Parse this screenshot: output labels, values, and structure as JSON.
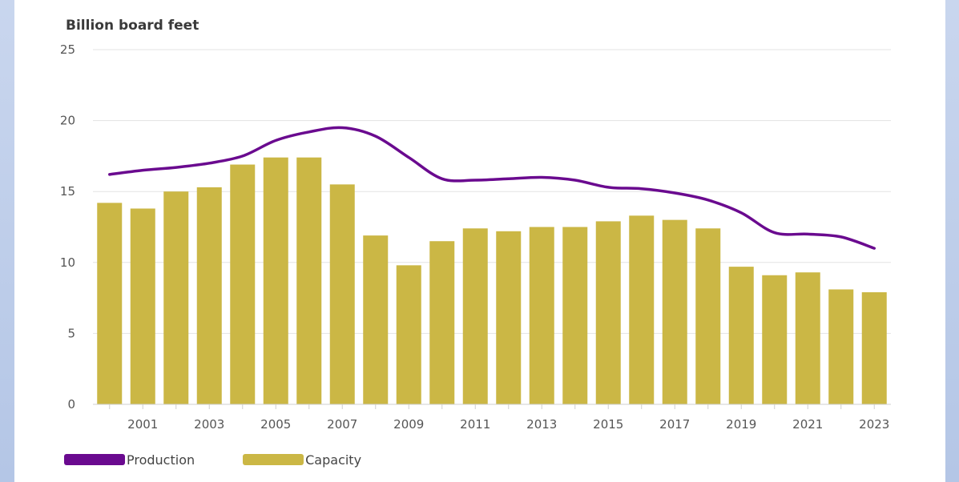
{
  "colors": {
    "production": "#6a0a8f",
    "capacity": "#cbb745",
    "grid": "#e3e3e3"
  },
  "chart_data": {
    "type": "bar",
    "ylabel": "Billion board feet",
    "ylim": [
      0,
      25
    ],
    "yticks": [
      0,
      5,
      10,
      15,
      20,
      25
    ],
    "categories": [
      2000,
      2001,
      2002,
      2003,
      2004,
      2005,
      2006,
      2007,
      2008,
      2009,
      2010,
      2011,
      2012,
      2013,
      2014,
      2015,
      2016,
      2017,
      2018,
      2019,
      2020,
      2021,
      2022,
      2023
    ],
    "xtick_labels": [
      "2001",
      "2003",
      "2005",
      "2007",
      "2009",
      "2011",
      "2013",
      "2015",
      "2017",
      "2019",
      "2021",
      "2023"
    ],
    "grid": true,
    "legend_position": "bottom-left",
    "series": [
      {
        "name": "Production",
        "type": "line",
        "values": [
          16.2,
          16.5,
          16.7,
          17.0,
          17.5,
          18.6,
          19.2,
          19.5,
          18.9,
          17.4,
          15.9,
          15.8,
          15.9,
          16.0,
          15.8,
          15.3,
          15.2,
          14.9,
          14.4,
          13.5,
          12.1,
          12.0,
          11.8,
          11.0
        ]
      },
      {
        "name": "Capacity",
        "type": "bar",
        "values": [
          14.2,
          13.8,
          15.0,
          15.3,
          16.9,
          17.4,
          17.4,
          15.5,
          11.9,
          9.8,
          11.5,
          12.4,
          12.2,
          12.5,
          12.5,
          12.9,
          13.3,
          13.0,
          12.4,
          9.7,
          9.1,
          9.3,
          8.1,
          7.9
        ]
      }
    ]
  }
}
